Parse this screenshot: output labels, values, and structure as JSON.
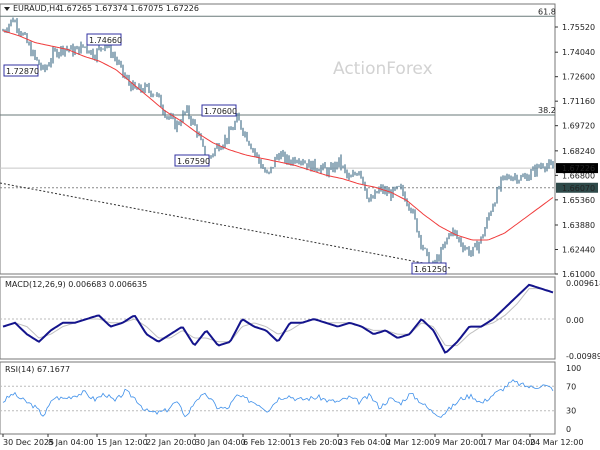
{
  "header": {
    "symbol": "EURAUD,H4",
    "ohlc": "1.67265 1.67374 1.67075 1.67226"
  },
  "watermark": "ActionForex",
  "colors": {
    "bars": "#5b8198",
    "ma": "#f03c3c",
    "macd": "#14148c",
    "signal": "#c0c0c0",
    "rsi": "#3f90ea",
    "label_border": "#3030a0"
  },
  "chart_data": [
    {
      "type": "line",
      "title": "EURAUD,H4",
      "y_ticks": [
        "1.75520",
        "1.74040",
        "1.72600",
        "1.71160",
        "1.69720",
        "1.68240",
        "1.66800",
        "1.65360",
        "1.63880",
        "1.62440",
        "1.61000"
      ],
      "ylim": [
        1.61,
        1.7632
      ],
      "x_ticks": [
        "30 Dec 2025",
        "8 Jan 04:00",
        "15 Jan 12:00",
        "22 Jan 20:00",
        "30 Jan 04:00",
        "6 Feb 12:00",
        "13 Feb 20:00",
        "23 Feb 04:00",
        "2 Mar 12:00",
        "9 Mar 20:00",
        "17 Mar 04:00",
        "24 Mar 12:00"
      ],
      "price_path": [
        1.753,
        1.76,
        1.75,
        1.738,
        1.729,
        1.74,
        1.743,
        1.741,
        1.744,
        1.739,
        1.746,
        1.737,
        1.725,
        1.718,
        1.719,
        1.716,
        1.704,
        1.697,
        1.706,
        1.695,
        1.676,
        1.685,
        1.69,
        1.701,
        1.69,
        1.678,
        1.667,
        1.681,
        1.676,
        1.679,
        1.674,
        1.673,
        1.67,
        1.676,
        1.665,
        1.672,
        1.652,
        1.66,
        1.657,
        1.66,
        1.65,
        1.63,
        1.613,
        1.622,
        1.636,
        1.628,
        1.622,
        1.631,
        1.65,
        1.665,
        1.668,
        1.666,
        1.67,
        1.675,
        1.672
      ],
      "ma_path": [
        1.753,
        1.75,
        1.746,
        1.744,
        1.742,
        1.738,
        1.735,
        1.73,
        1.722,
        1.714,
        1.706,
        1.7,
        1.693,
        1.687,
        1.683,
        1.68,
        1.678,
        1.676,
        1.674,
        1.671,
        1.668,
        1.666,
        1.663,
        1.661,
        1.658,
        1.653,
        1.645,
        1.638,
        1.633,
        1.63,
        1.63,
        1.634,
        1.641,
        1.648,
        1.655
      ],
      "levels": [
        {
          "label": "61.8",
          "price": 1.7615
        },
        {
          "label": "38.2",
          "price": 1.7035
        }
      ],
      "current_price": "1.67226",
      "support_level": "1.66070",
      "annotations": [
        "1.72870",
        "1.74660",
        "1.70600",
        "1.67590",
        "1.61250"
      ]
    },
    {
      "type": "line",
      "title": "MACD(12,26,9) 0.006683 0.006635",
      "y_ticks": [
        "0.009618",
        "0.00",
        "-0.009892"
      ],
      "macd_path": [
        -0.002,
        -0.001,
        -0.004,
        -0.006,
        -0.003,
        -0.001,
        -0.001,
        0.0,
        0.001,
        -0.002,
        -0.001,
        0.001,
        -0.004,
        -0.006,
        -0.004,
        -0.002,
        -0.007,
        -0.003,
        -0.007,
        -0.006,
        0.0,
        -0.002,
        -0.003,
        -0.006,
        -0.001,
        -0.001,
        0.0,
        -0.001,
        -0.002,
        -0.001,
        -0.002,
        -0.004,
        -0.003,
        -0.005,
        -0.004,
        0.0,
        -0.003,
        -0.009,
        -0.006,
        -0.002,
        -0.002,
        0.0,
        0.003,
        0.006,
        0.009,
        0.008,
        0.007
      ],
      "signal_path": [
        -0.002,
        -0.001,
        -0.002,
        -0.005,
        -0.004,
        -0.002,
        -0.001,
        0.0,
        0.0,
        -0.001,
        -0.001,
        0.0,
        -0.002,
        -0.005,
        -0.005,
        -0.003,
        -0.005,
        -0.005,
        -0.006,
        -0.006,
        -0.002,
        -0.001,
        -0.002,
        -0.004,
        -0.003,
        -0.001,
        0.0,
        -0.001,
        -0.001,
        -0.001,
        -0.002,
        -0.003,
        -0.003,
        -0.004,
        -0.004,
        -0.001,
        -0.002,
        -0.007,
        -0.007,
        -0.004,
        -0.002,
        -0.001,
        0.001,
        0.004,
        0.008,
        0.008,
        0.007
      ]
    },
    {
      "type": "line",
      "title": "RSI(14) 67.1677",
      "y_ticks": [
        "100",
        "70",
        "30",
        "0"
      ],
      "ylim": [
        0,
        100
      ],
      "rsi_path": [
        45,
        58,
        47,
        38,
        22,
        52,
        50,
        55,
        60,
        48,
        58,
        45,
        62,
        50,
        30,
        26,
        30,
        45,
        20,
        50,
        56,
        36,
        33,
        55,
        48,
        42,
        30,
        50,
        55,
        48,
        50,
        52,
        46,
        45,
        52,
        44,
        55,
        35,
        50,
        42,
        58,
        45,
        30,
        22,
        35,
        50,
        55,
        42,
        55,
        65,
        78,
        72,
        68,
        72,
        66
      ]
    }
  ]
}
